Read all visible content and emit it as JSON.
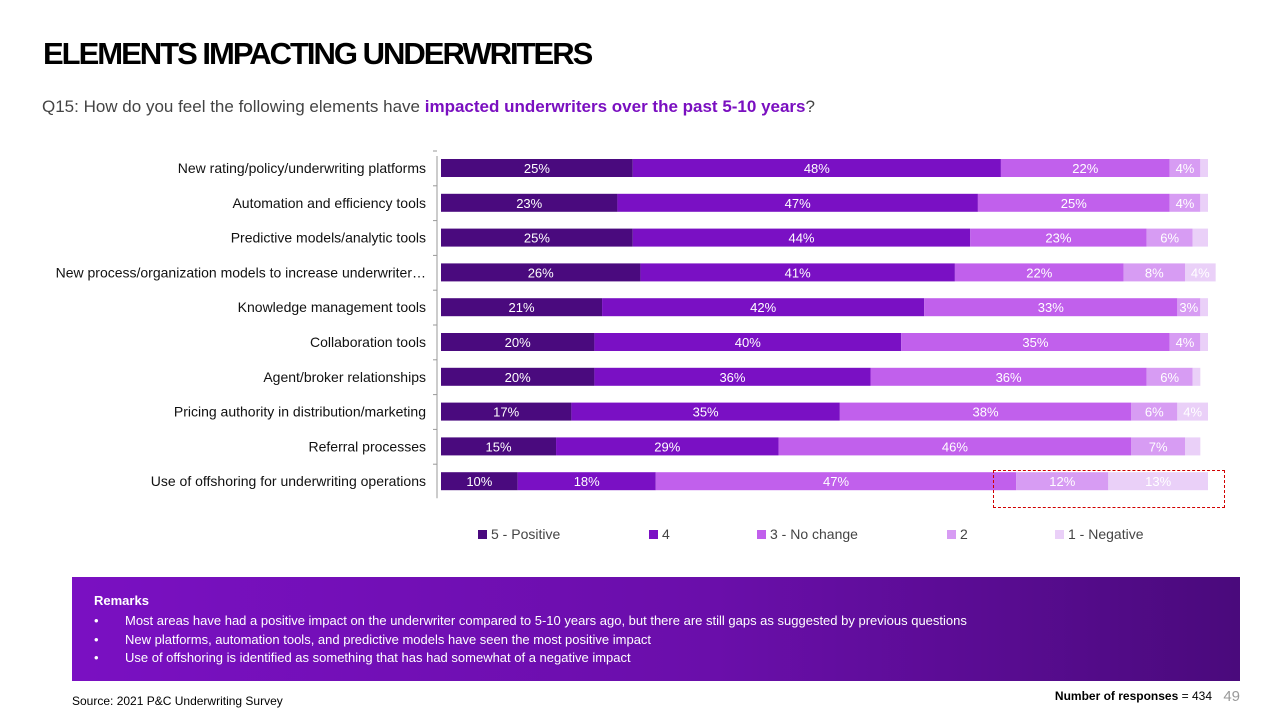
{
  "header": {
    "title": "ELEMENTS IMPACTING UNDERWRITERS",
    "question_prefix": "Q15: How do you feel the following elements have ",
    "question_highlight": "impacted underwriters over the past 5-10 years",
    "question_suffix": "?"
  },
  "colors": {
    "s5": "#4a0a7e",
    "s4": "#7a10c4",
    "s3": "#c160ec",
    "s2": "#d79cf3",
    "s1": "#ead0f8",
    "accent": "#7a0fc0",
    "highlight_border": "#d00000"
  },
  "chart_data": {
    "type": "bar",
    "orientation": "horizontal",
    "stacked": true,
    "categories": [
      "New rating/policy/underwriting platforms",
      "Automation and efficiency tools",
      "Predictive models/analytic tools",
      "New process/organization models to increase underwriter…",
      "Knowledge management tools",
      "Collaboration tools",
      "Agent/broker relationships",
      "Pricing authority in distribution/marketing",
      "Referral processes",
      "Use of offshoring for underwriting operations"
    ],
    "series": [
      {
        "name": "5 - Positive",
        "values": [
          25,
          23,
          25,
          26,
          21,
          20,
          20,
          17,
          15,
          10
        ]
      },
      {
        "name": "4",
        "values": [
          48,
          47,
          44,
          41,
          42,
          40,
          36,
          35,
          29,
          18
        ]
      },
      {
        "name": "3 - No change",
        "values": [
          22,
          25,
          23,
          22,
          33,
          35,
          36,
          38,
          46,
          47
        ]
      },
      {
        "name": "2",
        "values": [
          4,
          4,
          6,
          8,
          3,
          4,
          6,
          6,
          7,
          12
        ]
      },
      {
        "name": "1 - Negative",
        "values": [
          1,
          1,
          2,
          4,
          1,
          1,
          1,
          4,
          2,
          13
        ]
      }
    ],
    "label_threshold": 3,
    "xlim": [
      0,
      100
    ],
    "legend_position": "bottom"
  },
  "remarks": {
    "title": "Remarks",
    "items": [
      "Most areas have had a positive impact on the underwriter compared to 5-10 years ago, but there are still gaps as suggested by previous questions",
      "New platforms, automation tools, and predictive models have seen the most positive impact",
      "Use of offshoring is identified as something that has had somewhat of a negative impact"
    ]
  },
  "footer": {
    "source": "Source: 2021 P&C Underwriting Survey",
    "responses_label": "Number of responses",
    "responses_value": "= 434",
    "page_number": "49"
  }
}
